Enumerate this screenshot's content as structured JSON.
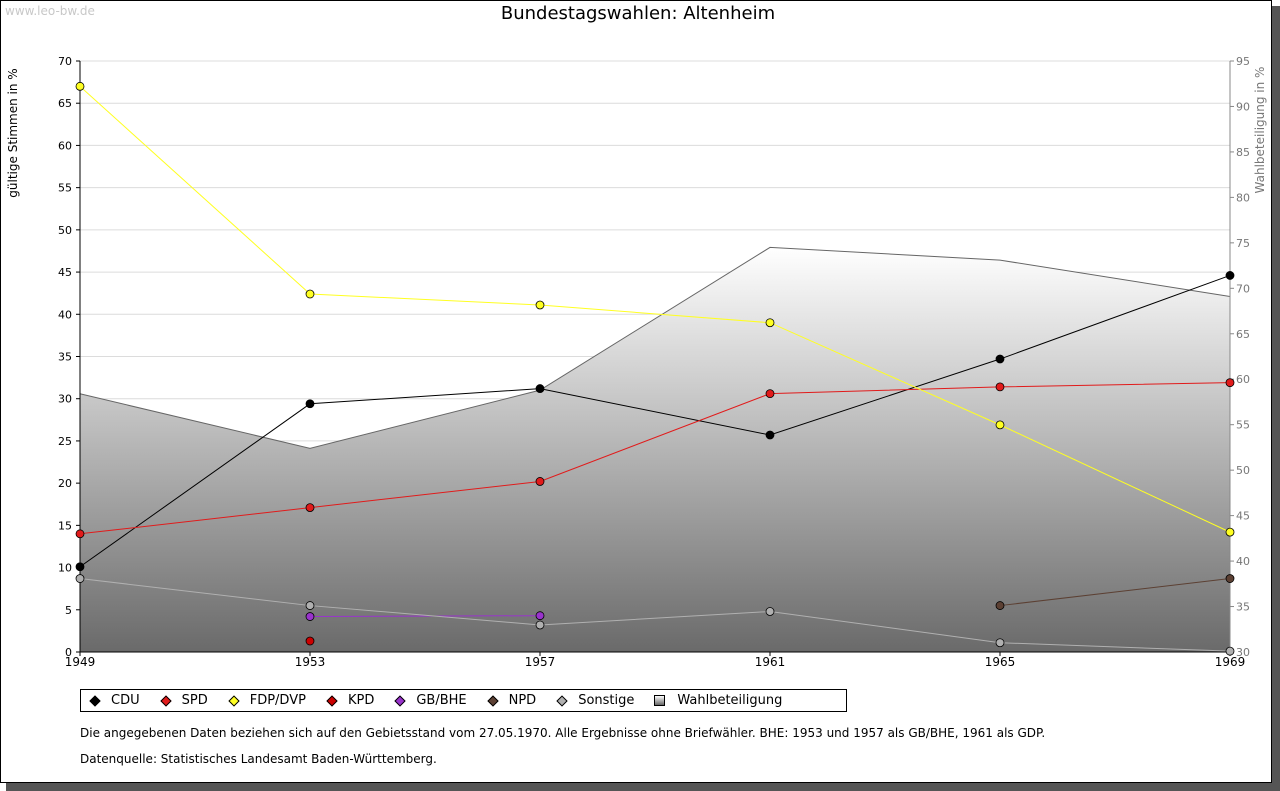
{
  "watermark": "www.leo-bw.de",
  "notes": {
    "line1": "Die angegebenen Daten beziehen sich auf den Gebietsstand vom 27.05.1970. Alle Ergebnisse ohne Briefwähler. BHE: 1953 und 1957 als GB/BHE, 1961 als GDP.",
    "line2": "Datenquelle: Statistisches Landesamt Baden-Württemberg."
  },
  "chart_data": {
    "type": "line",
    "title": "Bundestagswahlen: Altenheim",
    "ylabel": "gültige Stimmen in %",
    "y2label": "Wahlbeteiligung in %",
    "x": [
      1949,
      1953,
      1957,
      1961,
      1965,
      1969
    ],
    "ylim": [
      0,
      70
    ],
    "yticks": [
      0,
      5,
      10,
      15,
      20,
      25,
      30,
      35,
      40,
      45,
      50,
      55,
      60,
      65,
      70
    ],
    "y2lim": [
      30,
      95
    ],
    "y2ticks": [
      30,
      35,
      40,
      45,
      50,
      55,
      60,
      65,
      70,
      75,
      80,
      85,
      90,
      95
    ],
    "grid": true,
    "legend_position": "bottom",
    "series": [
      {
        "name": "CDU",
        "color": "#000000",
        "values": [
          10.1,
          29.4,
          31.2,
          25.7,
          34.7,
          44.6
        ]
      },
      {
        "name": "SPD",
        "color": "#e11b1b",
        "values": [
          14.0,
          17.1,
          20.2,
          30.6,
          31.4,
          31.9
        ]
      },
      {
        "name": "FDP/DVP",
        "color": "#ffff22",
        "values": [
          67.0,
          42.4,
          41.1,
          39.0,
          26.9,
          14.2
        ]
      },
      {
        "name": "KPD",
        "color": "#cc0000",
        "values": [
          null,
          1.3,
          null,
          null,
          null,
          null
        ]
      },
      {
        "name": "GB/BHE",
        "color": "#9933cc",
        "values": [
          null,
          4.2,
          4.3,
          null,
          null,
          null
        ]
      },
      {
        "name": "NPD",
        "color": "#5c4033",
        "values": [
          null,
          null,
          null,
          null,
          5.5,
          8.7
        ]
      },
      {
        "name": "Sonstige",
        "color": "#b0b0b0",
        "values": [
          8.7,
          5.5,
          3.2,
          4.8,
          1.1,
          0.1
        ]
      }
    ],
    "area": {
      "name": "Wahlbeteiligung",
      "axis": "right",
      "values": [
        58.4,
        52.4,
        58.8,
        74.5,
        73.1,
        69.1
      ]
    }
  }
}
